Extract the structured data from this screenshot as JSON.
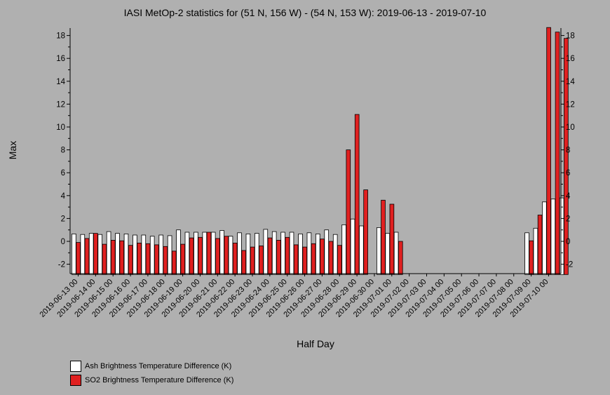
{
  "chart_data": {
    "type": "bar",
    "title": "IASI MetOp-2 statistics for (51 N, 156 W) - (54 N, 153 W): 2019-06-13 - 2019-07-10",
    "xlabel": "Half Day",
    "ylabel": "Max",
    "ylim": [
      -2.9,
      18.7
    ],
    "yticks": [
      -2,
      0,
      2,
      4,
      6,
      8,
      10,
      12,
      14,
      16,
      18
    ],
    "xticklabels": [
      "2019-06-13 00",
      "2019-06-14 00",
      "2019-06-15 00",
      "2019-06-16 00",
      "2019-06-17 00",
      "2019-06-18 00",
      "2019-06-19 00",
      "2019-06-20 00",
      "2019-06-21 00",
      "2019-06-22 00",
      "2019-06-23 00",
      "2019-06-24 00",
      "2019-06-25 00",
      "2019-06-26 00",
      "2019-06-27 00",
      "2019-06-28 00",
      "2019-06-29 00",
      "2019-06-30 00",
      "2019-07-01 00",
      "2019-07-02 00",
      "2019-07-03 00",
      "2019-07-04 00",
      "2019-07-05 00",
      "2019-07-06 00",
      "2019-07-07 00",
      "2019-07-08 00",
      "2019-07-09 00",
      "2019-07-10 00"
    ],
    "series": [
      {
        "name": "Ash Brightness Temperature Difference (K)",
        "color": "#ffffff",
        "values": [
          0.65,
          0.6,
          0.7,
          0.6,
          0.85,
          0.7,
          0.65,
          0.55,
          0.55,
          0.45,
          0.55,
          0.5,
          1.0,
          0.8,
          0.8,
          0.8,
          0.8,
          0.95,
          0.45,
          0.75,
          0.65,
          0.7,
          1.05,
          0.85,
          0.8,
          0.8,
          0.65,
          0.75,
          0.65,
          1.0,
          0.6,
          1.45,
          1.95,
          1.35,
          null,
          1.2,
          0.7,
          0.8,
          null,
          null,
          null,
          null,
          null,
          null,
          null,
          null,
          null,
          null,
          null,
          null,
          null,
          null,
          0.75,
          1.15,
          3.45,
          3.7,
          3.8
        ]
      },
      {
        "name": "SO2 Brightness Temperature Difference (K)",
        "color": "#e02020",
        "values": [
          -0.1,
          0.25,
          0.7,
          -0.25,
          0.1,
          0.05,
          -0.35,
          -0.15,
          -0.2,
          -0.3,
          -0.45,
          -0.85,
          -0.25,
          0.3,
          0.35,
          0.8,
          0.25,
          0.45,
          -0.15,
          -0.8,
          -0.5,
          -0.4,
          0.3,
          0.1,
          0.35,
          -0.3,
          -0.5,
          -0.2,
          0.2,
          0.0,
          -0.35,
          8.0,
          11.1,
          4.5,
          null,
          3.6,
          3.25,
          0.0,
          null,
          null,
          null,
          null,
          null,
          null,
          null,
          null,
          null,
          null,
          null,
          null,
          null,
          null,
          0.05,
          2.3,
          18.7,
          18.3,
          17.75
        ]
      }
    ]
  }
}
